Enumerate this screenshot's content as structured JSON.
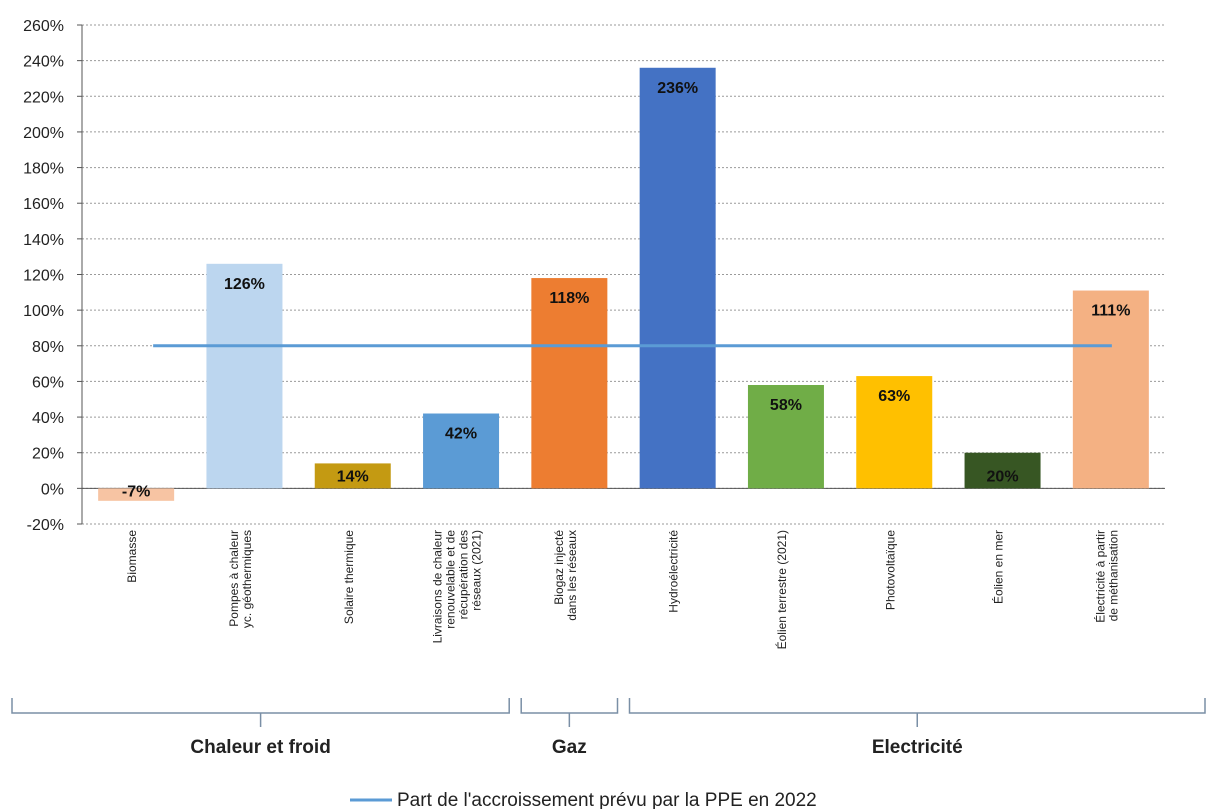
{
  "chart_data": {
    "type": "bar",
    "categories": [
      "Biomasse",
      "Pompes à chaleur\nyc. géothermiques",
      "Solaire thermique",
      "Livraisons de chaleur\nrenouvelable et de\nrécupération des\nréseaux (2021)",
      "Biogaz injecté\ndans les réseaux",
      "Hydroélectricité",
      "Éolien terrestre (2021)",
      "Photovoltaïque",
      "Éolien en mer",
      "Électricité à partir\nde méthanisation"
    ],
    "values": [
      -7,
      126,
      14,
      42,
      118,
      236,
      58,
      63,
      20,
      111
    ],
    "data_labels": [
      "-7%",
      "126%",
      "14%",
      "42%",
      "118%",
      "236%",
      "58%",
      "63%",
      "20%",
      "111%"
    ],
    "colors": [
      "#f7c4a3",
      "#bcd6ef",
      "#c49a12",
      "#5b9bd5",
      "#ed7d31",
      "#4472c4",
      "#70ad47",
      "#ffc000",
      "#375623",
      "#f4b183"
    ],
    "ylim": [
      -20,
      260
    ],
    "yticks": [
      "-20%",
      "0%",
      "20%",
      "40%",
      "60%",
      "80%",
      "100%",
      "120%",
      "140%",
      "160%",
      "180%",
      "200%",
      "220%",
      "240%",
      "260%"
    ],
    "grid": true,
    "reference_line": {
      "value": 80,
      "label": "Part de l'accroissement prévu par la PPE en 2022",
      "color": "#5b9bd5"
    },
    "groups": [
      {
        "label": "Chaleur et froid",
        "from": 0,
        "to": 3
      },
      {
        "label": "Gaz",
        "from": 4,
        "to": 4
      },
      {
        "label": "Electricité",
        "from": 5,
        "to": 9
      }
    ],
    "legend_position": "bottom-center"
  }
}
